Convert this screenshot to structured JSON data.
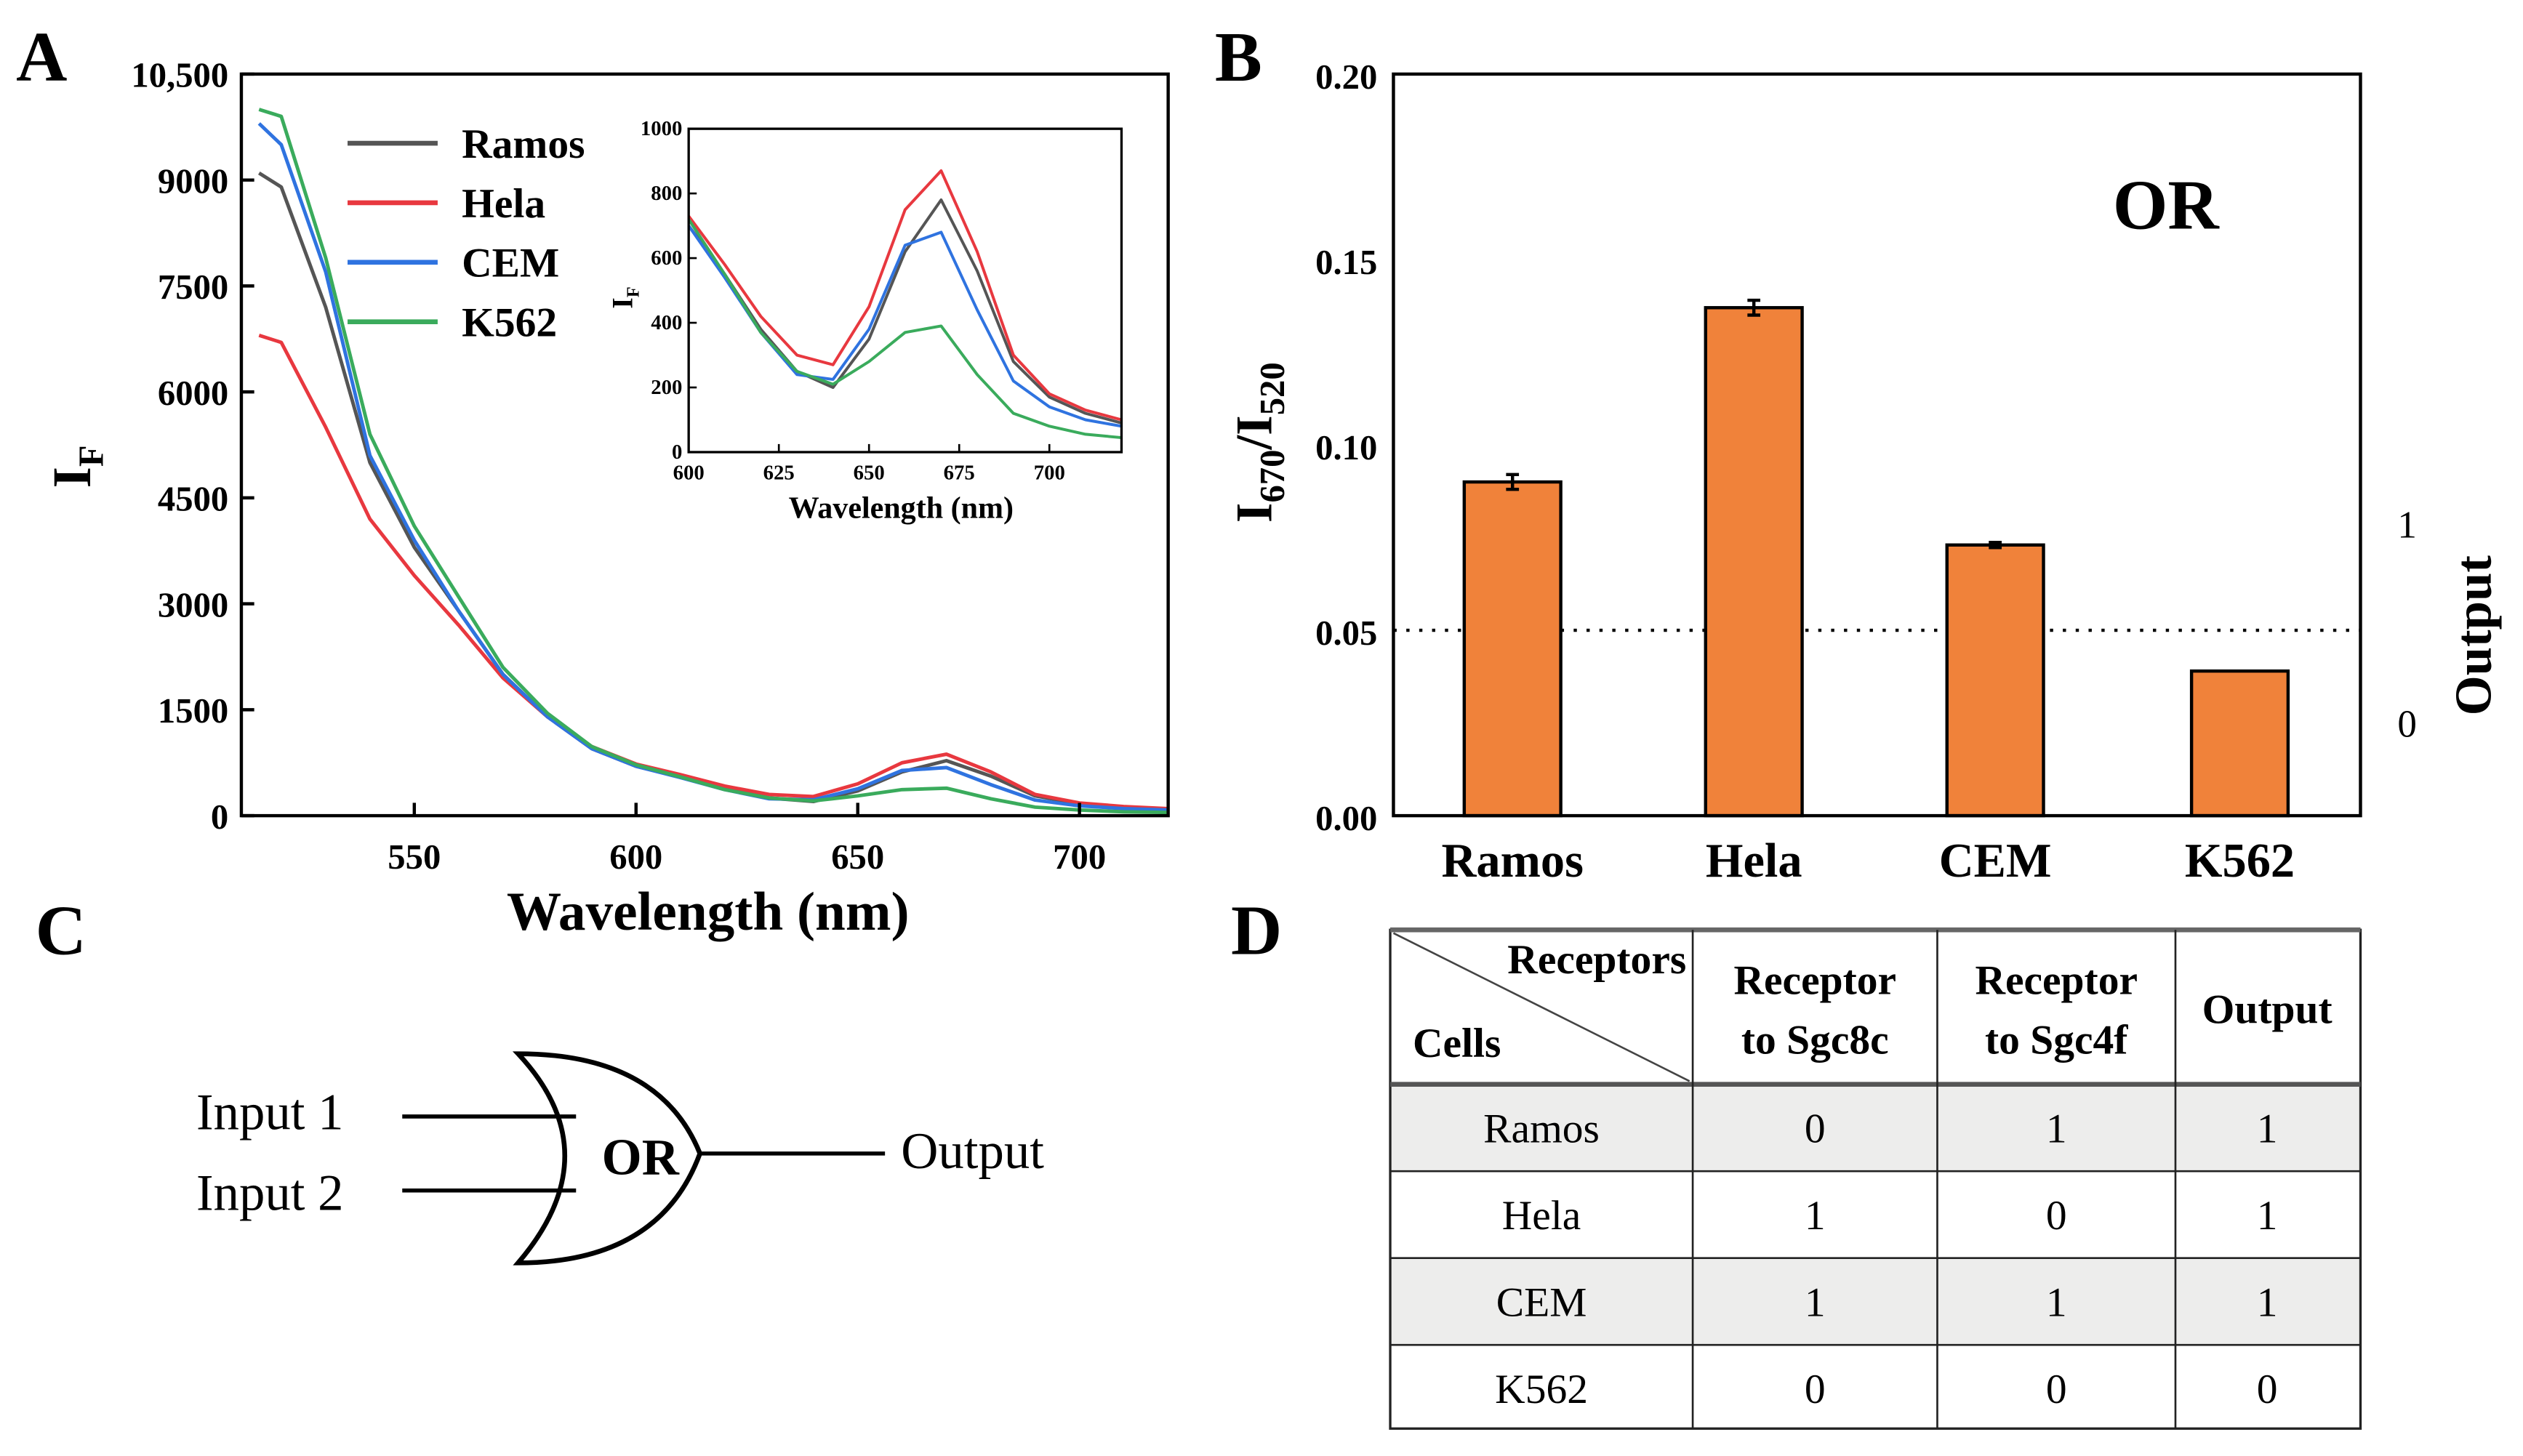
{
  "panels": {
    "a": "A",
    "b": "B",
    "c": "C",
    "d": "D"
  },
  "chart_data": [
    {
      "type": "line",
      "title": "",
      "xlabel": "Wavelength (nm)",
      "ylabel": "I",
      "ylabel_sub": "F",
      "xlim": [
        511,
        720
      ],
      "ylim": [
        0,
        10500
      ],
      "xticks": [
        550,
        600,
        650,
        700
      ],
      "yticks": [
        0,
        1500,
        3000,
        4500,
        6000,
        7500,
        9000,
        10500
      ],
      "ytick_labels": [
        "0",
        "1500",
        "3000",
        "4500",
        "6000",
        "7500",
        "9000",
        "10,500"
      ],
      "legend_position": "top-left-center",
      "x": [
        515,
        520,
        530,
        540,
        550,
        560,
        570,
        580,
        590,
        600,
        610,
        620,
        630,
        640,
        650,
        660,
        670,
        680,
        690,
        700,
        710,
        720
      ],
      "series": [
        {
          "name": "Ramos",
          "color": "#555555",
          "values": [
            9100,
            8900,
            7200,
            5000,
            3800,
            2900,
            2000,
            1400,
            950,
            700,
            550,
            380,
            250,
            200,
            350,
            620,
            780,
            560,
            280,
            170,
            120,
            90
          ]
        },
        {
          "name": "Hela",
          "color": "#e8383f",
          "values": [
            6800,
            6700,
            5500,
            4200,
            3400,
            2700,
            1950,
            1400,
            980,
            730,
            580,
            420,
            300,
            270,
            450,
            750,
            870,
            620,
            300,
            180,
            130,
            100
          ]
        },
        {
          "name": "CEM",
          "color": "#2f73e0",
          "values": [
            9800,
            9500,
            7700,
            5100,
            3900,
            2900,
            2000,
            1400,
            950,
            700,
            540,
            370,
            240,
            225,
            380,
            640,
            680,
            440,
            220,
            140,
            100,
            80
          ]
        },
        {
          "name": "K562",
          "color": "#3aab5c",
          "values": [
            10000,
            9900,
            7900,
            5400,
            4100,
            3100,
            2100,
            1450,
            980,
            720,
            550,
            370,
            250,
            210,
            280,
            370,
            390,
            240,
            120,
            80,
            55,
            45
          ]
        }
      ],
      "inset": {
        "xlabel": "Wavelength (nm)",
        "ylabel": "I",
        "ylabel_sub": "F",
        "xlim": [
          600,
          720
        ],
        "ylim": [
          0,
          1000
        ],
        "xticks": [
          600,
          625,
          650,
          675,
          700
        ],
        "yticks": [
          0,
          200,
          400,
          600,
          800,
          1000
        ]
      }
    },
    {
      "type": "bar",
      "title": "OR",
      "categories": [
        "Ramos",
        "Hela",
        "CEM",
        "K562"
      ],
      "values": [
        0.09,
        0.137,
        0.073,
        0.039
      ],
      "errors": [
        0.002,
        0.002,
        0.0007,
        0
      ],
      "bar_color": "#f0823a",
      "ylabel": "I",
      "ylabel_sub1": "670",
      "ylabel_mid": "/I",
      "ylabel_sub2": "520",
      "ylim": [
        0,
        0.2
      ],
      "yticks": [
        0,
        0.05,
        0.1,
        0.15,
        0.2
      ],
      "ytick_labels": [
        "0.00",
        "0.05",
        "0.10",
        "0.15",
        "0.20"
      ],
      "threshold": 0.05,
      "right_axis": {
        "label": "Output",
        "ticks": [
          "1",
          "0"
        ]
      }
    }
  ],
  "gate": {
    "input1": "Input 1",
    "input2": "Input 2",
    "label": "OR",
    "output": "Output"
  },
  "table": {
    "corner_top": "Receptors",
    "corner_bottom": "Cells",
    "headers": [
      [
        "Receptor",
        "to Sgc8c"
      ],
      [
        "Receptor",
        "to Sgc4f"
      ],
      [
        "Output"
      ]
    ],
    "rows": [
      [
        "Ramos",
        "0",
        "1",
        "1"
      ],
      [
        "Hela",
        "1",
        "0",
        "1"
      ],
      [
        "CEM",
        "1",
        "1",
        "1"
      ],
      [
        "K562",
        "0",
        "0",
        "0"
      ]
    ]
  }
}
